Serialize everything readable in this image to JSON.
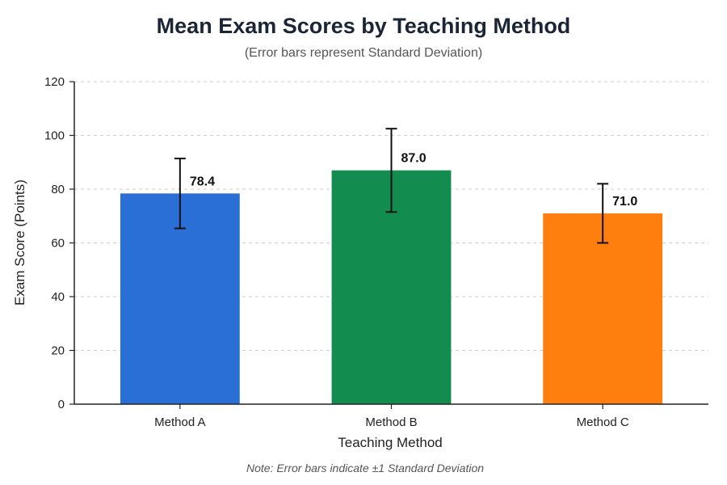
{
  "chart_data": {
    "type": "bar",
    "title": "Mean Exam Scores by Teaching Method",
    "subtitle": "(Error bars represent Standard Deviation)",
    "xlabel": "Teaching Method",
    "ylabel": "Exam Score (Points)",
    "categories": [
      "Method A",
      "Method B",
      "Method C"
    ],
    "values": [
      78.4,
      87.0,
      71.0
    ],
    "value_labels": [
      "78.4",
      "87.0",
      "71.0"
    ],
    "error_plus_minus": [
      13.0,
      15.5,
      11.0
    ],
    "colors": [
      "#2a6fd6",
      "#138d4f",
      "#ff7f0e"
    ],
    "ylim": [
      0,
      120
    ],
    "yticks": [
      0,
      20,
      40,
      60,
      80,
      100,
      120
    ],
    "grid": true,
    "note": "Note: Error bars indicate ±1 Standard Deviation"
  }
}
